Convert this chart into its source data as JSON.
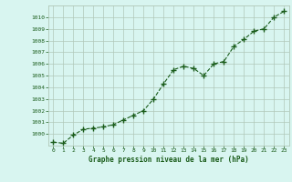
{
  "x": [
    0,
    1,
    2,
    3,
    4,
    5,
    6,
    7,
    8,
    9,
    10,
    11,
    12,
    13,
    14,
    15,
    16,
    17,
    18,
    19,
    20,
    21,
    22,
    23
  ],
  "y": [
    999.3,
    999.2,
    999.9,
    1000.4,
    1000.5,
    1000.6,
    1000.8,
    1001.2,
    1001.6,
    1002.0,
    1003.0,
    1004.3,
    1005.5,
    1005.8,
    1005.6,
    1005.0,
    1006.0,
    1006.2,
    1007.5,
    1008.1,
    1008.8,
    1009.0,
    1010.0,
    1010.5
  ],
  "line_color": "#1a5c1a",
  "marker_color": "#1a5c1a",
  "bg_color": "#d8f5f0",
  "grid_color": "#b0c8b8",
  "xlabel": "Graphe pression niveau de la mer (hPa)",
  "xlabel_color": "#1a5c1a",
  "tick_color": "#1a5c1a",
  "ylim": [
    999,
    1011
  ],
  "xlim": [
    -0.5,
    23.5
  ],
  "yticks": [
    1000,
    1001,
    1002,
    1003,
    1004,
    1005,
    1006,
    1007,
    1008,
    1009,
    1010
  ],
  "xticks": [
    0,
    1,
    2,
    3,
    4,
    5,
    6,
    7,
    8,
    9,
    10,
    11,
    12,
    13,
    14,
    15,
    16,
    17,
    18,
    19,
    20,
    21,
    22,
    23
  ]
}
